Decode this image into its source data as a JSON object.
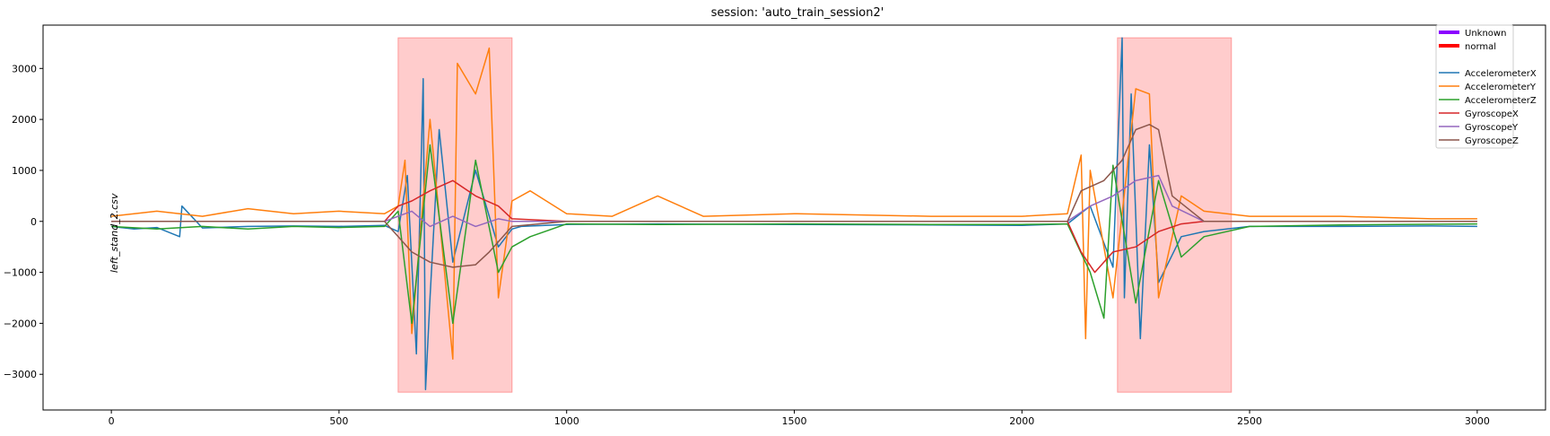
{
  "chart_data": {
    "type": "line",
    "title": "session: 'auto_train_session2'",
    "xlabel": "",
    "ylabel": "",
    "xlim": [
      -150,
      3150
    ],
    "ylim": [
      -3700,
      3850
    ],
    "grid": false,
    "legend_placement": "top-right",
    "x_ticks": [
      0,
      500,
      1000,
      1500,
      2000,
      2500,
      3000
    ],
    "y_ticks": [
      -3000,
      -2000,
      -1000,
      0,
      1000,
      2000,
      3000
    ],
    "y_tick_labels": [
      "−3000",
      "−2000",
      "−1000",
      "0",
      "1000",
      "2000",
      "3000"
    ],
    "annotations": [
      {
        "text": "left_stand_2.csv",
        "x": 0,
        "y": 550,
        "rotation": -90
      }
    ],
    "highlight_regions": [
      {
        "x_start": 630,
        "x_end": 880,
        "y_start": -3350,
        "y_end": 3600,
        "color": "#ff9999"
      },
      {
        "x_start": 2210,
        "x_end": 2460,
        "y_start": -3350,
        "y_end": 3600,
        "color": "#ff9999"
      }
    ],
    "label_legend": [
      {
        "name": "Unknown",
        "color": "#8b00ff"
      },
      {
        "name": "normal",
        "color": "#ff0000"
      }
    ],
    "series": [
      {
        "name": "AccelerometerX",
        "color": "#1f77b4",
        "x": [
          0,
          50,
          100,
          150,
          155,
          200,
          300,
          400,
          500,
          600,
          630,
          650,
          670,
          685,
          690,
          700,
          720,
          750,
          800,
          850,
          880,
          900,
          1000,
          1200,
          1500,
          1800,
          2000,
          2100,
          2150,
          2200,
          2220,
          2225,
          2240,
          2260,
          2280,
          2300,
          2350,
          2400,
          2500,
          2700,
          2900,
          3000
        ],
        "values": [
          -100,
          -150,
          -120,
          -300,
          300,
          -130,
          -100,
          -90,
          -100,
          -80,
          -200,
          900,
          -2600,
          2800,
          -3300,
          -1500,
          1800,
          -800,
          1000,
          -500,
          -150,
          -100,
          -60,
          -50,
          -60,
          -70,
          -80,
          -50,
          300,
          -900,
          3600,
          -1500,
          2500,
          -2300,
          1500,
          -1200,
          -300,
          -200,
          -100,
          -100,
          -90,
          -100
        ]
      },
      {
        "name": "AccelerometerY",
        "color": "#ff7f0e",
        "x": [
          0,
          50,
          100,
          200,
          300,
          400,
          500,
          600,
          630,
          645,
          660,
          700,
          750,
          760,
          800,
          830,
          850,
          880,
          920,
          1000,
          1100,
          1200,
          1300,
          1500,
          1800,
          2000,
          2100,
          2130,
          2140,
          2150,
          2200,
          2250,
          2280,
          2300,
          2350,
          2400,
          2500,
          2700,
          2900,
          3000
        ],
        "values": [
          100,
          150,
          200,
          100,
          250,
          150,
          200,
          150,
          300,
          1200,
          -2200,
          2000,
          -2700,
          3100,
          2500,
          3400,
          -1500,
          400,
          600,
          150,
          100,
          500,
          100,
          150,
          100,
          100,
          150,
          1300,
          -2300,
          1000,
          -1500,
          2600,
          2500,
          -1500,
          500,
          200,
          100,
          100,
          50,
          50
        ]
      },
      {
        "name": "AccelerometerZ",
        "color": "#2ca02c",
        "x": [
          0,
          100,
          200,
          300,
          400,
          500,
          600,
          630,
          660,
          700,
          750,
          800,
          850,
          880,
          920,
          1000,
          1200,
          1500,
          1800,
          2000,
          2100,
          2150,
          2180,
          2200,
          2250,
          2300,
          2350,
          2400,
          2500,
          2700,
          3000
        ],
        "values": [
          -100,
          -150,
          -100,
          -150,
          -100,
          -120,
          -100,
          200,
          -2000,
          1500,
          -2000,
          1200,
          -1000,
          -500,
          -300,
          -50,
          -60,
          -50,
          -60,
          -60,
          -50,
          -1000,
          -1900,
          1100,
          -1600,
          800,
          -700,
          -300,
          -100,
          -70,
          -50
        ]
      },
      {
        "name": "GyroscopeX",
        "color": "#d62728",
        "x": [
          0,
          300,
          600,
          630,
          660,
          700,
          750,
          800,
          850,
          880,
          1000,
          2100,
          2130,
          2160,
          2200,
          2250,
          2300,
          2350,
          2400,
          3000
        ],
        "values": [
          0,
          0,
          0,
          300,
          400,
          600,
          800,
          500,
          300,
          50,
          0,
          0,
          -600,
          -1000,
          -600,
          -500,
          -200,
          -50,
          0,
          0
        ]
      },
      {
        "name": "GyroscopeY",
        "color": "#9467bd",
        "x": [
          0,
          300,
          600,
          630,
          660,
          700,
          750,
          800,
          850,
          880,
          1000,
          2100,
          2150,
          2200,
          2250,
          2300,
          2330,
          2400,
          3000
        ],
        "values": [
          0,
          0,
          0,
          100,
          200,
          -100,
          100,
          -100,
          50,
          0,
          0,
          0,
          300,
          500,
          800,
          900,
          300,
          0,
          0
        ]
      },
      {
        "name": "GyroscopeZ",
        "color": "#8c564b",
        "x": [
          0,
          300,
          600,
          630,
          660,
          700,
          750,
          800,
          830,
          880,
          1000,
          2100,
          2130,
          2180,
          2220,
          2250,
          2280,
          2300,
          2330,
          2400,
          3000
        ],
        "values": [
          0,
          0,
          0,
          -300,
          -600,
          -800,
          -900,
          -850,
          -600,
          -100,
          0,
          0,
          600,
          800,
          1200,
          1800,
          1900,
          1800,
          500,
          0,
          0
        ]
      }
    ]
  }
}
